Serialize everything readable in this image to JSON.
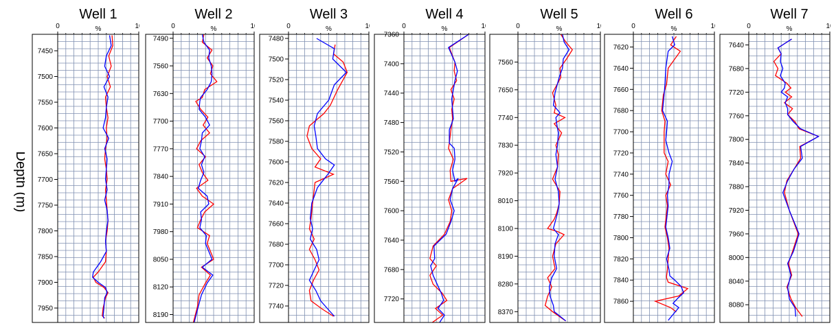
{
  "y_axis_label": "Depth (m)",
  "colors": {
    "series_a": "#ff0000",
    "series_b": "#0000ff",
    "grid": "#7f8fb0",
    "frame": "#000000"
  },
  "chart_data": [
    {
      "type": "line",
      "title": "Well 1",
      "xlabel": "%",
      "xlim": [
        0,
        10
      ],
      "xticks": [
        0,
        10
      ],
      "ylim": [
        7418,
        7978
      ],
      "yticks": [
        7450,
        7500,
        7550,
        7600,
        7650,
        7700,
        7750,
        7800,
        7850,
        7900,
        7950
      ],
      "grid": true,
      "series": [
        {
          "color": "#ff0000",
          "x": [
            6.7,
            6.8,
            6.3,
            6.6,
            6.1,
            6.5,
            5.9,
            6.0,
            6.2,
            6.0,
            6.1,
            5.9,
            5.8,
            6.0,
            6.1,
            5.9,
            6.0,
            6.1,
            6.2,
            6.1,
            5.9,
            6.0,
            5.9,
            5.0,
            4.4,
            4.7,
            5.7,
            6.2,
            5.9,
            5.6,
            5.5,
            5.8
          ],
          "y": [
            7420,
            7440,
            7460,
            7480,
            7500,
            7520,
            7540,
            7560,
            7580,
            7600,
            7620,
            7640,
            7660,
            7680,
            7700,
            7720,
            7740,
            7760,
            7780,
            7800,
            7820,
            7840,
            7860,
            7880,
            7890,
            7900,
            7910,
            7920,
            7930,
            7950,
            7965,
            7970
          ]
        },
        {
          "color": "#0000ff",
          "x": [
            6.4,
            6.6,
            6.0,
            5.8,
            6.4,
            5.7,
            6.2,
            6.0,
            5.9,
            5.6,
            6.3,
            5.8,
            6.1,
            6.0,
            5.9,
            6.1,
            5.8,
            6.1,
            6.2,
            6.0,
            5.9,
            6.0,
            5.3,
            4.4,
            4.3,
            5.0,
            5.9,
            6.1,
            5.8,
            5.7,
            5.6,
            5.7
          ],
          "y": [
            7420,
            7440,
            7460,
            7480,
            7500,
            7520,
            7540,
            7560,
            7580,
            7600,
            7620,
            7640,
            7660,
            7680,
            7700,
            7720,
            7740,
            7760,
            7780,
            7800,
            7820,
            7840,
            7860,
            7880,
            7890,
            7900,
            7910,
            7920,
            7930,
            7950,
            7965,
            7970
          ]
        }
      ]
    },
    {
      "type": "line",
      "title": "Well 2",
      "xlabel": "%",
      "xlim": [
        0,
        10
      ],
      "xticks": [
        0,
        10
      ],
      "ylim": [
        7480,
        8210
      ],
      "yticks": [
        7490,
        7560,
        7630,
        7700,
        7770,
        7840,
        7910,
        7980,
        8050,
        8120,
        8190
      ],
      "grid": true,
      "series": [
        {
          "color": "#ff0000",
          "x": [
            3.8,
            3.6,
            4.8,
            4.2,
            4.9,
            4.6,
            5.4,
            3.9,
            3.6,
            2.8,
            3.4,
            4.3,
            3.7,
            4.5,
            3.4,
            2.9,
            4.0,
            3.2,
            3.6,
            4.3,
            2.9,
            3.6,
            5.0,
            3.9,
            3.4,
            3.0,
            4.5,
            4.2,
            5.0,
            3.5,
            4.6,
            4.0,
            3.2,
            3.0,
            2.5
          ],
          "y": [
            7480,
            7500,
            7520,
            7540,
            7560,
            7580,
            7600,
            7620,
            7640,
            7650,
            7670,
            7690,
            7710,
            7730,
            7750,
            7770,
            7790,
            7810,
            7830,
            7850,
            7870,
            7890,
            7910,
            7930,
            7950,
            7970,
            7990,
            8010,
            8050,
            8070,
            8090,
            8110,
            8140,
            8170,
            8210
          ]
        },
        {
          "color": "#0000ff",
          "x": [
            3.6,
            3.8,
            4.5,
            4.4,
            4.7,
            4.8,
            4.7,
            4.2,
            3.4,
            3.3,
            3.2,
            4.0,
            4.5,
            3.6,
            3.5,
            3.3,
            3.9,
            3.5,
            3.8,
            3.4,
            3.1,
            4.2,
            4.4,
            3.4,
            3.5,
            3.3,
            4.1,
            4.0,
            4.8,
            3.6,
            4.9,
            4.2,
            3.5,
            3.1,
            2.6
          ],
          "y": [
            7480,
            7500,
            7520,
            7540,
            7560,
            7580,
            7600,
            7620,
            7640,
            7650,
            7670,
            7690,
            7710,
            7730,
            7750,
            7770,
            7790,
            7810,
            7830,
            7850,
            7870,
            7890,
            7910,
            7930,
            7950,
            7970,
            7990,
            8010,
            8050,
            8070,
            8090,
            8110,
            8140,
            8170,
            8210
          ]
        }
      ]
    },
    {
      "type": "line",
      "title": "Well 3",
      "xlabel": "%",
      "xlim": [
        0,
        10
      ],
      "xticks": [
        0,
        10
      ],
      "ylim": [
        7476,
        7756
      ],
      "yticks": [
        7480,
        7500,
        7520,
        7540,
        7560,
        7580,
        7600,
        7620,
        7640,
        7660,
        7680,
        7700,
        7720,
        7740
      ],
      "grid": true,
      "series": [
        {
          "color": "#ff0000",
          "x": [
            5.8,
            5.6,
            6.8,
            7.3,
            6.1,
            5.2,
            4.4,
            2.6,
            2.3,
            2.9,
            4.0,
            3.3,
            5.6,
            3.3,
            3.0,
            2.8,
            2.6,
            3.2,
            2.6,
            3.3,
            3.8,
            3.1,
            2.6,
            2.8,
            4.2,
            5.6
          ],
          "y": [
            7486,
            7495,
            7503,
            7513,
            7530,
            7545,
            7553,
            7565,
            7575,
            7587,
            7597,
            7605,
            7612,
            7620,
            7640,
            7655,
            7665,
            7675,
            7685,
            7695,
            7705,
            7715,
            7725,
            7735,
            7743,
            7750
          ]
        },
        {
          "color": "#0000ff",
          "x": [
            3.5,
            5.7,
            5.5,
            7.2,
            5.7,
            5.0,
            3.6,
            3.2,
            3.4,
            3.6,
            4.6,
            5.7,
            4.9,
            3.6,
            2.9,
            2.7,
            3.0,
            2.7,
            3.5,
            3.8,
            3.2,
            2.6,
            3.4,
            4.0,
            4.9,
            5.7
          ],
          "y": [
            7480,
            7490,
            7500,
            7513,
            7525,
            7540,
            7553,
            7565,
            7575,
            7587,
            7597,
            7603,
            7612,
            7625,
            7640,
            7655,
            7665,
            7675,
            7685,
            7695,
            7705,
            7715,
            7725,
            7735,
            7743,
            7750
          ]
        }
      ]
    },
    {
      "type": "line",
      "title": "Well 4",
      "xlabel": "%",
      "xlim": [
        0,
        10
      ],
      "xticks": [
        0,
        10
      ],
      "ylim": [
        7360,
        7752
      ],
      "yticks": [
        7360,
        7400,
        7440,
        7480,
        7520,
        7560,
        7600,
        7640,
        7680,
        7720
      ],
      "grid": true,
      "series": [
        {
          "color": "#ff0000",
          "x": [
            8.0,
            5.6,
            6.3,
            6.2,
            6.5,
            5.8,
            6.2,
            5.9,
            6.0,
            5.8,
            5.6,
            5.5,
            6.1,
            5.7,
            5.8,
            7.8,
            6.0,
            5.5,
            5.9,
            5.7,
            5.0,
            3.6,
            3.2,
            4.0,
            3.2,
            3.6,
            4.7,
            5.3,
            3.9,
            4.8,
            3.5
          ],
          "y": [
            7360,
            7378,
            7398,
            7410,
            7423,
            7435,
            7448,
            7462,
            7475,
            7490,
            7508,
            7515,
            7530,
            7545,
            7560,
            7556,
            7570,
            7585,
            7600,
            7615,
            7632,
            7648,
            7665,
            7675,
            7688,
            7700,
            7712,
            7722,
            7733,
            7742,
            7752
          ]
        },
        {
          "color": "#0000ff",
          "x": [
            8.0,
            5.5,
            6.3,
            6.6,
            6.3,
            6.1,
            5.9,
            6.0,
            6.1,
            5.6,
            5.6,
            6.2,
            6.3,
            6.0,
            6.3,
            6.7,
            6.0,
            5.7,
            6.2,
            5.8,
            5.2,
            3.7,
            3.8,
            3.3,
            3.6,
            4.1,
            4.6,
            4.9,
            4.2,
            5.0,
            4.4
          ],
          "y": [
            7360,
            7378,
            7398,
            7410,
            7423,
            7435,
            7448,
            7462,
            7475,
            7490,
            7508,
            7515,
            7530,
            7545,
            7560,
            7556,
            7570,
            7585,
            7600,
            7615,
            7632,
            7648,
            7665,
            7675,
            7688,
            7700,
            7712,
            7722,
            7733,
            7742,
            7752
          ]
        }
      ]
    },
    {
      "type": "line",
      "title": "Well 5",
      "xlabel": "%",
      "xlim": [
        0,
        10
      ],
      "xticks": [
        0,
        10
      ],
      "ylim": [
        7470,
        8405
      ],
      "yticks": [
        7560,
        7650,
        7740,
        7830,
        7920,
        8010,
        8100,
        8190,
        8280,
        8370
      ],
      "grid": true,
      "series": [
        {
          "color": "#ff0000",
          "x": [
            5.2,
            5.8,
            6.6,
            5.9,
            5.1,
            5.2,
            4.2,
            4.6,
            4.4,
            5.7,
            4.4,
            5.3,
            4.6,
            4.9,
            4.8,
            4.2,
            5.1,
            5.0,
            4.7,
            4.4,
            3.6,
            4.8,
            5.6,
            4.6,
            4.2,
            4.5,
            3.6,
            4.1,
            3.6,
            3.3,
            4.2,
            5.8
          ],
          "y": [
            7470,
            7495,
            7520,
            7550,
            7580,
            7610,
            7660,
            7700,
            7725,
            7740,
            7760,
            7790,
            7830,
            7860,
            7900,
            7940,
            7980,
            8020,
            8050,
            8070,
            8100,
            8110,
            8120,
            8150,
            8190,
            8230,
            8260,
            8290,
            8320,
            8350,
            8370,
            8400
          ]
        },
        {
          "color": "#0000ff",
          "x": [
            5.4,
            5.6,
            6.2,
            5.5,
            5.4,
            5.0,
            4.5,
            4.3,
            5.1,
            4.6,
            4.7,
            4.9,
            4.8,
            4.6,
            4.8,
            4.5,
            4.9,
            5.0,
            4.8,
            4.6,
            4.3,
            4.6,
            4.9,
            4.5,
            4.4,
            4.7,
            4.1,
            3.8,
            3.9,
            4.3,
            4.4,
            5.8
          ],
          "y": [
            7470,
            7495,
            7520,
            7550,
            7580,
            7610,
            7660,
            7700,
            7725,
            7740,
            7760,
            7790,
            7830,
            7860,
            7900,
            7940,
            7980,
            8020,
            8050,
            8070,
            8100,
            8110,
            8120,
            8150,
            8190,
            8230,
            8260,
            8290,
            8320,
            8350,
            8370,
            8400
          ]
        }
      ]
    },
    {
      "type": "line",
      "title": "Well 6",
      "xlabel": "%",
      "xlim": [
        0,
        10
      ],
      "xticks": [
        0,
        10
      ],
      "ylim": [
        7608,
        7880
      ],
      "yticks": [
        7620,
        7640,
        7660,
        7680,
        7700,
        7720,
        7740,
        7760,
        7780,
        7800,
        7820,
        7840,
        7860
      ],
      "grid": true,
      "series": [
        {
          "color": "#ff0000",
          "x": [
            5.3,
            4.6,
            5.8,
            4.3,
            4.1,
            3.7,
            3.5,
            3.9,
            3.8,
            3.8,
            3.8,
            4.3,
            4.0,
            4.6,
            4.0,
            4.2,
            3.9,
            4.2,
            4.4,
            4.3,
            4.2,
            4.1,
            4.1,
            4.3,
            6.7,
            5.6,
            2.7,
            4.6,
            5.3
          ],
          "y": [
            7610,
            7618,
            7624,
            7640,
            7655,
            7665,
            7680,
            7690,
            7700,
            7708,
            7720,
            7728,
            7740,
            7750,
            7760,
            7770,
            7790,
            7800,
            7810,
            7820,
            7830,
            7836,
            7838,
            7842,
            7848,
            7855,
            7860,
            7866,
            7870
          ]
        },
        {
          "color": "#0000ff",
          "x": [
            4.8,
            5.1,
            4.3,
            4.0,
            3.9,
            3.8,
            3.6,
            4.2,
            4.1,
            4.0,
            4.4,
            4.8,
            4.4,
            4.4,
            4.2,
            4.3,
            4.0,
            4.3,
            4.5,
            4.1,
            4.4,
            4.5,
            5.1,
            5.9,
            6.2,
            5.5,
            4.9,
            5.6,
            4.3
          ],
          "y": [
            7610,
            7618,
            7624,
            7640,
            7655,
            7665,
            7680,
            7690,
            7700,
            7708,
            7720,
            7728,
            7740,
            7750,
            7760,
            7770,
            7790,
            7800,
            7810,
            7820,
            7830,
            7836,
            7840,
            7846,
            7852,
            7857,
            7862,
            7866,
            7878
          ]
        }
      ]
    },
    {
      "type": "line",
      "title": "Well 7",
      "xlabel": "%",
      "xlim": [
        0,
        10
      ],
      "xticks": [
        0,
        10
      ],
      "ylim": [
        7622,
        8110
      ],
      "yticks": [
        7640,
        7680,
        7720,
        7760,
        7800,
        7840,
        7880,
        7920,
        7960,
        8000,
        8040,
        8080
      ],
      "grid": true,
      "series": [
        {
          "color": "#ff0000",
          "x": [
            5.3,
            3.6,
            4.0,
            3.1,
            3.6,
            3.3,
            4.7,
            5.2,
            4.5,
            5.3,
            4.4,
            5.4,
            4.8,
            5.7,
            6.2,
            8.6,
            6.3,
            6.4,
            5.6,
            4.7,
            4.4,
            5.0,
            6.1,
            5.4,
            4.9,
            5.3,
            4.7,
            5.2,
            5.8,
            6.6
          ],
          "y": [
            7630,
            7645,
            7655,
            7668,
            7680,
            7692,
            7705,
            7713,
            7720,
            7728,
            7738,
            7748,
            7758,
            7770,
            7782,
            7795,
            7812,
            7832,
            7850,
            7870,
            7890,
            7920,
            7960,
            7990,
            8010,
            8030,
            8050,
            8070,
            8085,
            8100
          ]
        },
        {
          "color": "#0000ff",
          "x": [
            5.3,
            3.6,
            4.0,
            3.9,
            4.2,
            3.9,
            4.5,
            4.4,
            4.0,
            4.8,
            4.5,
            4.8,
            4.8,
            5.5,
            6.4,
            8.6,
            6.4,
            6.6,
            5.6,
            4.8,
            4.2,
            5.0,
            6.2,
            5.5,
            4.8,
            5.2,
            4.8,
            5.0,
            5.7,
            5.8
          ],
          "y": [
            7630,
            7645,
            7655,
            7668,
            7680,
            7692,
            7705,
            7713,
            7720,
            7728,
            7738,
            7748,
            7758,
            7770,
            7782,
            7795,
            7812,
            7832,
            7850,
            7870,
            7890,
            7920,
            7960,
            7990,
            8010,
            8030,
            8050,
            8070,
            8085,
            8100
          ]
        }
      ]
    }
  ]
}
